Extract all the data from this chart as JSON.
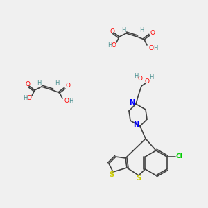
{
  "bg_color": "#f0f0f0",
  "atom_colors": {
    "C": "#4a9090",
    "H": "#4a9090",
    "O": "#ff0000",
    "N": "#0000ff",
    "S": "#cccc00",
    "Cl": "#00cc00"
  },
  "bond_color": "#404040",
  "title": ""
}
